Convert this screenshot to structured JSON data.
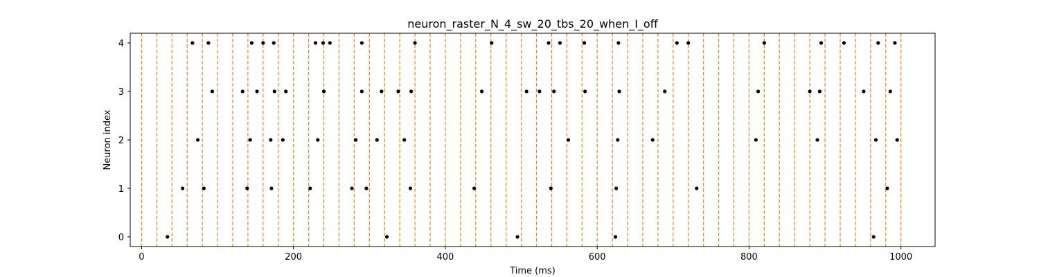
{
  "chart_data": {
    "type": "scatter",
    "title": "neuron_raster_N_4_sw_20_tbs_20_when_I_off",
    "xlabel": "Time (ms)",
    "ylabel": "Neuron index",
    "xlim": [
      -15,
      1045
    ],
    "ylim": [
      -0.2,
      4.2
    ],
    "xticks": [
      0,
      200,
      400,
      600,
      800,
      1000
    ],
    "yticks": [
      0,
      1,
      2,
      3,
      4
    ],
    "grid": false,
    "marker_color": "#000000",
    "vline_color": "#ff7f0e",
    "vline_style": "dashed",
    "vlines": [
      0,
      20,
      40,
      60,
      80,
      100,
      120,
      140,
      160,
      180,
      200,
      220,
      240,
      260,
      280,
      300,
      320,
      340,
      360,
      380,
      400,
      420,
      440,
      460,
      480,
      500,
      520,
      540,
      560,
      580,
      600,
      620,
      640,
      660,
      680,
      700,
      720,
      740,
      760,
      780,
      800,
      820,
      840,
      860,
      880,
      900,
      920,
      940,
      960,
      980,
      1000
    ],
    "series": [
      {
        "neuron": 0,
        "times": [
          34,
          323,
          495,
          624,
          964
        ]
      },
      {
        "neuron": 1,
        "times": [
          54,
          82,
          139,
          171,
          222,
          277,
          296,
          354,
          438,
          539,
          625,
          731,
          982
        ]
      },
      {
        "neuron": 2,
        "times": [
          74,
          143,
          170,
          186,
          232,
          282,
          310,
          346,
          562,
          627,
          673,
          809,
          890,
          967,
          995
        ]
      },
      {
        "neuron": 3,
        "times": [
          93,
          133,
          152,
          175,
          190,
          240,
          290,
          316,
          338,
          355,
          448,
          507,
          524,
          543,
          584,
          629,
          689,
          812,
          880,
          893,
          951,
          986
        ]
      },
      {
        "neuron": 4,
        "times": [
          67,
          88,
          145,
          160,
          174,
          229,
          239,
          248,
          290,
          360,
          461,
          536,
          551,
          583,
          628,
          705,
          720,
          820,
          895,
          925,
          970,
          992
        ]
      }
    ]
  }
}
